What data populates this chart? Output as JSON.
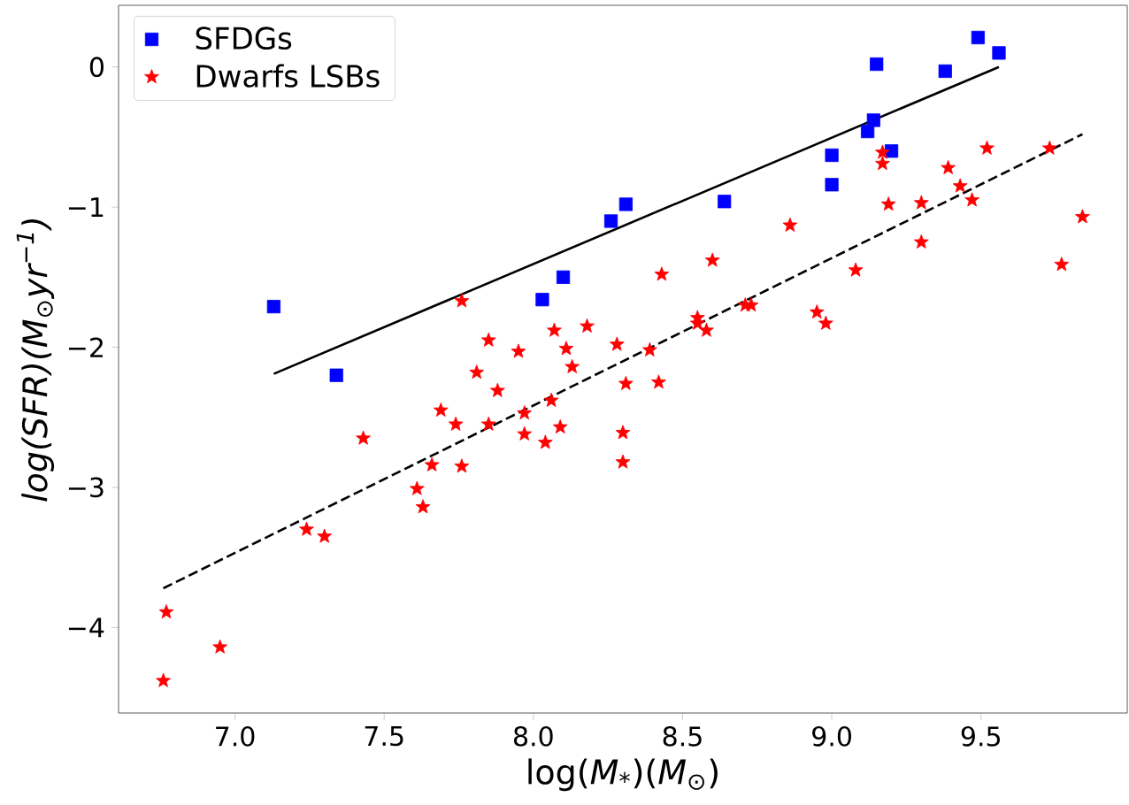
{
  "chart_data": {
    "type": "scatter",
    "xlabel": "log(*M*$_{*}$)(*M*$_{⊙}$)",
    "ylabel": "log(SFR)(M$_{⊙}$yr$^{−1}$)",
    "xlim": [
      6.61,
      9.99
    ],
    "ylim": [
      -4.61,
      0.44
    ],
    "xticks": [
      {
        "value": 7,
        "label": "7.0"
      },
      {
        "value": 7.5,
        "label": "7.5"
      },
      {
        "value": 8,
        "label": "8.0"
      },
      {
        "value": 8.5,
        "label": "8.5"
      },
      {
        "value": 9,
        "label": "9.0"
      },
      {
        "value": 9.5,
        "label": "9.5"
      }
    ],
    "yticks": [
      {
        "value": -4,
        "label": "−4"
      },
      {
        "value": -3,
        "label": "−3"
      },
      {
        "value": -2,
        "label": "−2"
      },
      {
        "value": -1,
        "label": "−1"
      },
      0
    ],
    "legend": "top left",
    "series": [
      {
        "name": "SFDGs",
        "marker": "square",
        "color": "#0000ff",
        "x": [
          7.13,
          7.34,
          8.03,
          8.1,
          8.26,
          8.31,
          8.64,
          9.0,
          9.0,
          9.12,
          9.14,
          9.15,
          9.2,
          9.38,
          9.49,
          9.56
        ],
        "values": [
          -1.71,
          -2.2,
          -1.66,
          -1.5,
          -1.1,
          -0.98,
          -0.96,
          -0.63,
          -0.84,
          -0.46,
          -0.38,
          0.02,
          -0.6,
          -0.03,
          0.21,
          0.1
        ]
      },
      {
        "name": "Dwarfs LSBs",
        "marker": "star",
        "color": "#ff0000",
        "x": [
          6.76,
          6.77,
          6.95,
          7.24,
          7.3,
          7.43,
          7.61,
          7.63,
          7.66,
          7.69,
          7.74,
          7.76,
          7.81,
          7.88,
          7.85,
          7.97,
          7.97,
          8.04,
          8.06,
          8.09,
          8.13,
          7.76,
          7.85,
          7.95,
          8.07,
          8.11,
          8.18,
          8.28,
          8.43,
          8.6,
          8.39,
          8.31,
          8.42,
          8.55,
          8.55,
          8.58,
          8.71,
          8.73,
          8.86,
          8.95,
          8.98,
          9.08,
          9.17,
          9.17,
          9.19,
          9.3,
          9.3,
          9.39,
          9.43,
          9.47,
          9.52,
          9.73,
          9.77,
          9.84,
          8.3,
          8.3
        ],
        "values": [
          -4.38,
          -3.89,
          -4.14,
          -3.3,
          -3.35,
          -2.65,
          -3.01,
          -3.14,
          -2.84,
          -2.45,
          -2.55,
          -2.85,
          -2.18,
          -2.31,
          -2.55,
          -2.47,
          -2.62,
          -2.68,
          -2.38,
          -2.57,
          -2.14,
          -1.67,
          -1.95,
          -2.03,
          -1.88,
          -2.01,
          -1.85,
          -1.98,
          -1.48,
          -1.38,
          -2.02,
          -2.26,
          -2.25,
          -1.83,
          -1.79,
          -1.88,
          -1.7,
          -1.7,
          -1.13,
          -1.75,
          -1.83,
          -1.45,
          -0.61,
          -0.69,
          -0.98,
          -0.97,
          -1.25,
          -0.72,
          -0.85,
          -0.95,
          -0.58,
          -0.58,
          -1.41,
          -1.07,
          -2.61,
          -2.82
        ]
      },
      {
        "type": "line",
        "color": "#000000",
        "line_style": "solid",
        "x": [
          7.13,
          9.56
        ],
        "values": [
          -2.19,
          0.0
        ]
      },
      {
        "type": "line",
        "color": "#000000",
        "line_style": "dashed",
        "x": [
          6.76,
          9.84
        ],
        "values": [
          -3.72,
          -0.48
        ]
      }
    ]
  }
}
